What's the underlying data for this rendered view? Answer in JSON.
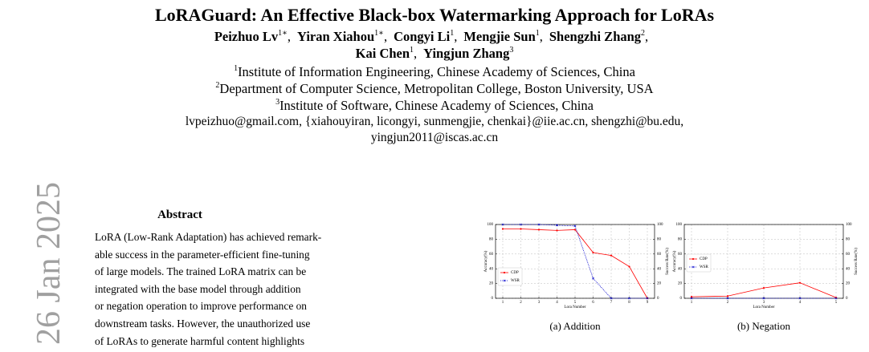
{
  "header": {
    "title": "LoRAGuard: An Effective Black-box Watermarking Approach for LoRAs",
    "author_lines": [
      [
        {
          "name": "Peizhuo Lv",
          "sup": "1∗",
          "sep": ","
        },
        {
          "name": "Yiran Xiahou",
          "sup": "1∗",
          "sep": ","
        },
        {
          "name": "Congyi Li",
          "sup": "1",
          "sep": ","
        },
        {
          "name": "Mengjie Sun",
          "sup": "1",
          "sep": ","
        },
        {
          "name": "Shengzhi Zhang",
          "sup": "2",
          "sep": ","
        }
      ],
      [
        {
          "name": "Kai Chen",
          "sup": "1",
          "sep": ","
        },
        {
          "name": "Yingjun Zhang",
          "sup": "3"
        }
      ]
    ],
    "affiliations": [
      {
        "sup": "1",
        "text": "Institute of Information Engineering, Chinese Academy of Sciences, China"
      },
      {
        "sup": "2",
        "text": "Department of Computer Science, Metropolitan College, Boston University, USA"
      },
      {
        "sup": "3",
        "text": "Institute of Software, Chinese Academy of Sciences, China"
      }
    ],
    "emails": [
      "lvpeizhuo@gmail.com, {xiahouyiran, licongyi, sunmengjie, chenkai}@iie.ac.cn, shengzhi@bu.edu,",
      "yingjun2011@iscas.ac.cn"
    ]
  },
  "side_stamp": "26 Jan 2025",
  "abstract": {
    "heading": "Abstract",
    "lines": [
      "LoRA (Low-Rank Adaptation) has achieved remark-",
      "able success in the parameter-efficient fine-tuning",
      "of large models. The trained LoRA matrix can be",
      "integrated with the base model through addition",
      "or negation operation to improve performance on",
      "downstream tasks. However, the unauthorized use",
      "of LoRAs to generate harmful content highlights"
    ]
  },
  "chart_data": [
    {
      "type": "line",
      "caption": "(a) Addition",
      "x_label": "Lora Number",
      "y_label": "Accuracy(%)",
      "y2_label": "Success Rate(%)",
      "x": [
        1,
        2,
        3,
        4,
        5,
        6,
        7,
        8,
        9
      ],
      "xlim": [
        0.6,
        9.4
      ],
      "xticks": [
        1,
        2,
        3,
        4,
        5,
        6,
        7,
        8,
        9
      ],
      "ylim": [
        0,
        100
      ],
      "yticks": [
        0,
        20,
        40,
        60,
        80,
        100
      ],
      "y2lim": [
        0,
        100
      ],
      "y2ticks": [
        0,
        20,
        40,
        60,
        80,
        100
      ],
      "grid": true,
      "legend": "lower left",
      "series": [
        {
          "name": "CDP",
          "color": "#ff0000",
          "marker": "circle",
          "dash": "solid",
          "values": [
            94,
            94,
            93,
            92,
            93,
            62,
            58,
            43,
            0
          ]
        },
        {
          "name": "WSR",
          "color": "#0000cc",
          "marker": "cross",
          "dash": "dotted",
          "axis": "y2",
          "values": [
            100,
            100,
            100,
            99,
            98,
            27,
            0,
            0,
            0
          ]
        }
      ]
    },
    {
      "type": "line",
      "caption": "(b) Negation",
      "x_label": "Lora Number",
      "y_label": "Accuracy(%)",
      "y2_label": "Success Rate(%)",
      "x": [
        1,
        2,
        3,
        4,
        5
      ],
      "xlim": [
        0.8,
        5.2
      ],
      "xticks": [
        1,
        2,
        3,
        4,
        5
      ],
      "ylim": [
        0,
        100
      ],
      "yticks": [
        0,
        20,
        40,
        60,
        80,
        100
      ],
      "y2lim": [
        0,
        100
      ],
      "y2ticks": [
        0,
        20,
        40,
        60,
        80,
        100
      ],
      "grid": true,
      "legend": "center left",
      "series": [
        {
          "name": "CDP",
          "color": "#ff0000",
          "marker": "circle",
          "dash": "solid",
          "values": [
            2,
            3,
            14,
            21,
            1
          ]
        },
        {
          "name": "WSR",
          "color": "#0000cc",
          "marker": "cross",
          "dash": "dotted",
          "axis": "y2",
          "values": [
            0,
            0,
            0,
            0,
            0
          ]
        }
      ]
    }
  ]
}
